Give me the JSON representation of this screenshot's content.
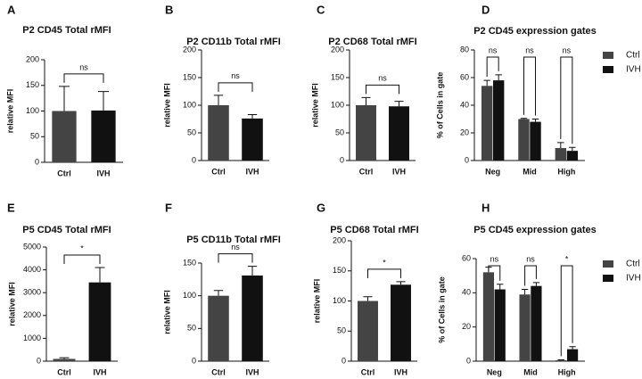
{
  "chart_data": [
    {
      "type": "bar",
      "panel": "A",
      "title": "P2 CD45 Total rMFI",
      "ylabel": "relative MFI",
      "categories": [
        "Ctrl",
        "IVH"
      ],
      "values": [
        100,
        101
      ],
      "errors": [
        48,
        37
      ],
      "colors": [
        "#444444",
        "#111111"
      ],
      "ylim": [
        0,
        200
      ],
      "yticks": [
        0,
        50,
        100,
        150,
        200
      ],
      "significance": [
        "ns"
      ]
    },
    {
      "type": "bar",
      "panel": "B",
      "title": "P2 CD11b Total rMFI",
      "ylabel": "relative MFI",
      "categories": [
        "Ctrl",
        "IVH"
      ],
      "values": [
        100,
        76
      ],
      "errors": [
        18,
        7
      ],
      "colors": [
        "#444444",
        "#111111"
      ],
      "ylim": [
        0,
        200
      ],
      "yticks": [
        0,
        50,
        100,
        150,
        200
      ],
      "significance": [
        "ns"
      ]
    },
    {
      "type": "bar",
      "panel": "C",
      "title": "P2 CD68 Total rMFI",
      "ylabel": "relative MFI",
      "categories": [
        "Ctrl",
        "IVH"
      ],
      "values": [
        100,
        98
      ],
      "errors": [
        14,
        9
      ],
      "colors": [
        "#444444",
        "#111111"
      ],
      "ylim": [
        0,
        200
      ],
      "yticks": [
        0,
        50,
        100,
        150,
        200
      ],
      "significance": [
        "ns"
      ]
    },
    {
      "type": "grouped_bar",
      "panel": "D",
      "title": "P2 CD45 expression gates",
      "ylabel": "% of Cells in gate",
      "categories": [
        "Neg",
        "Mid",
        "High"
      ],
      "series": [
        {
          "name": "Ctrl",
          "color": "#444444",
          "values": [
            54,
            30,
            9
          ],
          "errors": [
            4,
            0.5,
            4
          ]
        },
        {
          "name": "IVH",
          "color": "#111111",
          "values": [
            58,
            28,
            7
          ],
          "errors": [
            4,
            2,
            2.5
          ]
        }
      ],
      "ylim": [
        0,
        80
      ],
      "yticks": [
        0,
        20,
        40,
        60,
        80
      ],
      "legend": "right",
      "significance": [
        "ns",
        "ns",
        "ns"
      ]
    },
    {
      "type": "bar",
      "panel": "E",
      "title": "P5 CD45 Total rMFI",
      "ylabel": "relative MFI",
      "categories": [
        "Ctrl",
        "IVH"
      ],
      "values": [
        100,
        3450
      ],
      "errors": [
        50,
        650
      ],
      "colors": [
        "#444444",
        "#111111"
      ],
      "ylim": [
        0,
        5000
      ],
      "yticks": [
        0,
        1000,
        2000,
        3000,
        4000,
        5000
      ],
      "significance": [
        "*"
      ]
    },
    {
      "type": "bar",
      "panel": "F",
      "title": "P5 CD11b Total rMFI",
      "ylabel": "relative MFI",
      "categories": [
        "Ctrl",
        "IVH"
      ],
      "values": [
        100,
        131
      ],
      "errors": [
        8,
        14
      ],
      "colors": [
        "#444444",
        "#111111"
      ],
      "ylim": [
        0,
        150
      ],
      "yticks": [
        0,
        50,
        100,
        150
      ],
      "significance": [
        "ns"
      ]
    },
    {
      "type": "bar",
      "panel": "G",
      "title": "P5 CD68 Total rMFI",
      "ylabel": "relative MFI",
      "categories": [
        "Ctrl",
        "IVH"
      ],
      "values": [
        100,
        127
      ],
      "errors": [
        7,
        5
      ],
      "colors": [
        "#444444",
        "#111111"
      ],
      "ylim": [
        0,
        200
      ],
      "yticks": [
        0,
        50,
        100,
        150,
        200
      ],
      "significance": [
        "*"
      ]
    },
    {
      "type": "grouped_bar",
      "panel": "H",
      "title": "P5 CD45 expression gates",
      "ylabel": "% of Cells in gate",
      "categories": [
        "Neg",
        "Mid",
        "High"
      ],
      "series": [
        {
          "name": "Ctrl",
          "color": "#444444",
          "values": [
            52,
            39,
            0.5
          ],
          "errors": [
            3,
            3,
            0.3
          ]
        },
        {
          "name": "IVH",
          "color": "#111111",
          "values": [
            42,
            44,
            7
          ],
          "errors": [
            3,
            2,
            1.5
          ]
        }
      ],
      "ylim": [
        0,
        60
      ],
      "yticks": [
        0,
        20,
        40,
        60
      ],
      "legend": "right",
      "significance": [
        "ns",
        "ns",
        "*"
      ]
    }
  ]
}
